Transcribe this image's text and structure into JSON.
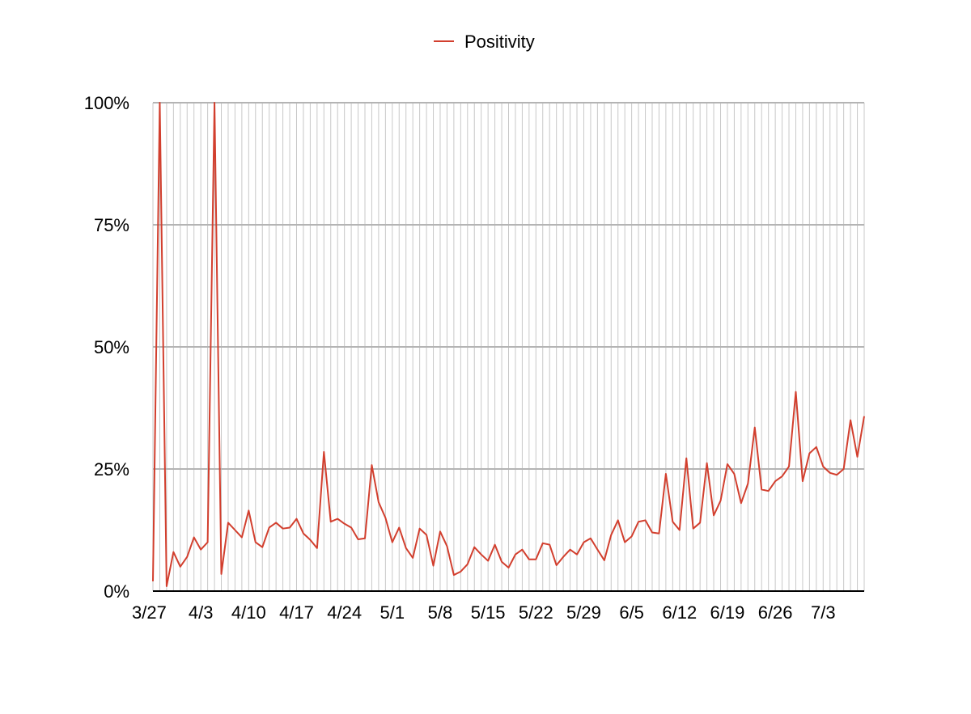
{
  "chart_data": {
    "type": "line",
    "title": "",
    "xlabel": "",
    "ylabel": "",
    "ylim": [
      0,
      1
    ],
    "yticks": [
      {
        "value": 1.0,
        "label": "100%"
      },
      {
        "value": 0.75,
        "label": "75%"
      },
      {
        "value": 0.5,
        "label": "50%"
      },
      {
        "value": 0.25,
        "label": "25%"
      },
      {
        "value": 0.0,
        "label": "0%"
      }
    ],
    "xticks": [
      "3/27",
      "4/3",
      "4/10",
      "4/17",
      "4/24",
      "5/1",
      "5/8",
      "5/15",
      "5/22",
      "5/29",
      "6/5",
      "6/12",
      "6/19",
      "6/26",
      "7/3"
    ],
    "grid": true,
    "legend": "top-center",
    "series": [
      {
        "name": "Positivity",
        "color": "#d23f2e",
        "x": [
          "3/27",
          "3/28",
          "3/29",
          "3/30",
          "3/31",
          "4/1",
          "4/2",
          "4/3",
          "4/4",
          "4/5",
          "4/6",
          "4/7",
          "4/8",
          "4/9",
          "4/10",
          "4/11",
          "4/12",
          "4/13",
          "4/14",
          "4/15",
          "4/16",
          "4/17",
          "4/18",
          "4/19",
          "4/20",
          "4/21",
          "4/22",
          "4/23",
          "4/24",
          "4/25",
          "4/26",
          "4/27",
          "4/28",
          "4/29",
          "4/30",
          "5/1",
          "5/2",
          "5/3",
          "5/4",
          "5/5",
          "5/6",
          "5/7",
          "5/8",
          "5/9",
          "5/10",
          "5/11",
          "5/12",
          "5/13",
          "5/14",
          "5/15",
          "5/16",
          "5/17",
          "5/18",
          "5/19",
          "5/20",
          "5/21",
          "5/22",
          "5/23",
          "5/24",
          "5/25",
          "5/26",
          "5/27",
          "5/28",
          "5/29",
          "5/30",
          "5/31",
          "6/1",
          "6/2",
          "6/3",
          "6/4",
          "6/5",
          "6/6",
          "6/7",
          "6/8",
          "6/9",
          "6/10",
          "6/11",
          "6/12",
          "6/13",
          "6/14",
          "6/15",
          "6/16",
          "6/17",
          "6/18",
          "6/19",
          "6/20",
          "6/21",
          "6/22",
          "6/23",
          "6/24",
          "6/25",
          "6/26",
          "6/27",
          "6/28",
          "6/29",
          "6/30",
          "7/1",
          "7/2",
          "7/3",
          "7/4",
          "7/5",
          "7/6",
          "7/7",
          "7/8",
          "7/9"
        ],
        "values": [
          0.02,
          1.0,
          0.01,
          0.08,
          0.05,
          0.07,
          0.11,
          0.085,
          0.1,
          1.0,
          0.035,
          0.14,
          0.125,
          0.11,
          0.165,
          0.1,
          0.09,
          0.13,
          0.14,
          0.128,
          0.13,
          0.148,
          0.118,
          0.105,
          0.088,
          0.285,
          0.142,
          0.148,
          0.138,
          0.13,
          0.106,
          0.108,
          0.258,
          0.182,
          0.15,
          0.1,
          0.13,
          0.088,
          0.068,
          0.128,
          0.115,
          0.052,
          0.122,
          0.092,
          0.033,
          0.04,
          0.055,
          0.09,
          0.075,
          0.062,
          0.095,
          0.06,
          0.048,
          0.075,
          0.085,
          0.065,
          0.065,
          0.098,
          0.095,
          0.053,
          0.07,
          0.085,
          0.075,
          0.1,
          0.108,
          0.085,
          0.063,
          0.115,
          0.145,
          0.1,
          0.112,
          0.142,
          0.145,
          0.12,
          0.118,
          0.24,
          0.142,
          0.125,
          0.272,
          0.128,
          0.14,
          0.262,
          0.155,
          0.185,
          0.26,
          0.24,
          0.18,
          0.22,
          0.335,
          0.208,
          0.205,
          0.225,
          0.235,
          0.255,
          0.408,
          0.225,
          0.282,
          0.295,
          0.255,
          0.242,
          0.238,
          0.25,
          0.35,
          0.275,
          0.358
        ]
      }
    ]
  }
}
